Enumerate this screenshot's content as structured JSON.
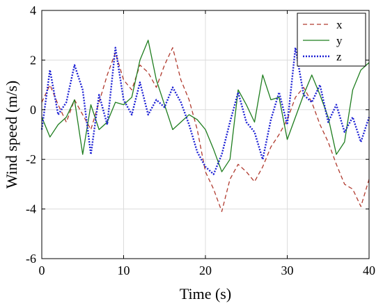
{
  "chart_data": {
    "type": "line",
    "title": "",
    "xlabel": "Time (s)",
    "ylabel": "Wind speed (m/s)",
    "xlim": [
      0,
      40
    ],
    "ylim": [
      -6,
      4
    ],
    "xticks": [
      0,
      10,
      20,
      30,
      40
    ],
    "yticks": [
      -6,
      -4,
      -2,
      0,
      2,
      4
    ],
    "xtick_labels": [
      "0",
      "10",
      "20",
      "30",
      "40"
    ],
    "ytick_labels": [
      "-6",
      "-4",
      "-2",
      "0",
      "2",
      "4"
    ],
    "grid": true,
    "legend_position": "top-right",
    "series": [
      {
        "name": "x",
        "color": "#b03a2e",
        "style": "dashed",
        "x": [
          0,
          1,
          2,
          3,
          4,
          5,
          6,
          7,
          8,
          9,
          10,
          11,
          12,
          13,
          14,
          15,
          16,
          17,
          18,
          19,
          20,
          21,
          22,
          23,
          24,
          25,
          26,
          27,
          28,
          29,
          30,
          31,
          32,
          33,
          34,
          35,
          36,
          37,
          38,
          39,
          40
        ],
        "y": [
          0.3,
          1.0,
          0.2,
          -0.5,
          0.4,
          -0.2,
          -0.8,
          0.3,
          1.4,
          2.3,
          1.2,
          0.8,
          1.8,
          1.5,
          0.9,
          1.8,
          2.5,
          1.2,
          0.4,
          -0.8,
          -2.5,
          -3.2,
          -4.1,
          -2.8,
          -2.2,
          -2.5,
          -2.9,
          -2.3,
          -1.5,
          -1.0,
          -0.4,
          0.5,
          0.9,
          0.3,
          -0.6,
          -1.3,
          -2.2,
          -3.0,
          -3.2,
          -3.9,
          -2.8
        ]
      },
      {
        "name": "y",
        "color": "#1e7d1e",
        "style": "solid",
        "x": [
          0,
          1,
          2,
          3,
          4,
          5,
          6,
          7,
          8,
          9,
          10,
          11,
          12,
          13,
          14,
          15,
          16,
          17,
          18,
          19,
          20,
          21,
          22,
          23,
          24,
          25,
          26,
          27,
          28,
          29,
          30,
          31,
          32,
          33,
          34,
          35,
          36,
          37,
          38,
          39,
          40
        ],
        "y": [
          -0.3,
          -1.1,
          -0.6,
          -0.3,
          0.4,
          -1.8,
          0.2,
          -0.8,
          -0.5,
          0.3,
          0.2,
          0.5,
          2.0,
          2.8,
          1.2,
          0.2,
          -0.8,
          -0.5,
          -0.2,
          -0.4,
          -0.8,
          -1.6,
          -2.5,
          -2.0,
          0.8,
          0.2,
          -0.5,
          1.4,
          0.4,
          0.5,
          -1.2,
          -0.3,
          0.6,
          1.4,
          0.6,
          -0.3,
          -1.8,
          -1.3,
          0.8,
          1.6,
          1.9
        ]
      },
      {
        "name": "z",
        "color": "#1b1fd4",
        "style": "dotted",
        "x": [
          0,
          1,
          2,
          3,
          4,
          5,
          6,
          7,
          8,
          9,
          10,
          11,
          12,
          13,
          14,
          15,
          16,
          17,
          18,
          19,
          20,
          21,
          22,
          23,
          24,
          25,
          26,
          27,
          28,
          29,
          30,
          31,
          32,
          33,
          34,
          35,
          36,
          37,
          38,
          39,
          40
        ],
        "y": [
          -0.8,
          1.6,
          -0.2,
          0.3,
          1.8,
          0.8,
          -1.8,
          0.6,
          -0.6,
          2.5,
          0.4,
          -0.2,
          1.1,
          -0.2,
          0.4,
          0.1,
          0.9,
          0.3,
          -0.6,
          -1.7,
          -2.3,
          -2.6,
          -1.8,
          -0.5,
          0.7,
          -0.5,
          -0.9,
          -2.0,
          -0.4,
          0.7,
          -0.6,
          2.5,
          0.6,
          0.3,
          1.0,
          -0.5,
          0.2,
          -0.9,
          -0.3,
          -1.3,
          -0.3
        ]
      }
    ]
  }
}
